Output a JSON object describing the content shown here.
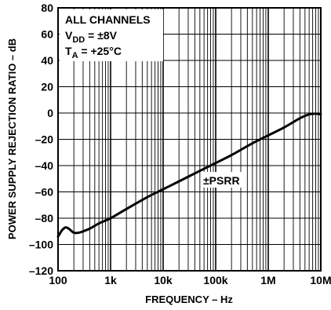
{
  "chart_data": {
    "type": "line",
    "title": "",
    "xlabel": "FREQUENCY – Hz",
    "ylabel": "POWER SUPPLY REJECTION RATIO – dB",
    "x_scale": "log",
    "xlim": [
      100,
      10000000
    ],
    "ylim": [
      -120,
      80
    ],
    "x_ticks": [
      100,
      1000,
      10000,
      100000,
      1000000,
      10000000
    ],
    "x_tick_labels": [
      "100",
      "1k",
      "10k",
      "100k",
      "1M",
      "10M"
    ],
    "y_ticks": [
      80,
      60,
      40,
      20,
      0,
      -20,
      -40,
      -60,
      -80,
      -100,
      -120
    ],
    "y_tick_labels": [
      "80",
      "60",
      "40",
      "20",
      "0",
      "–20",
      "–40",
      "–60",
      "–80",
      "–100",
      "–120"
    ],
    "grid": true,
    "legend": {
      "line1": "ALL CHANNELS",
      "line2_prefix": "V",
      "line2_sub": "DD",
      "line2_suffix": " = ±8V",
      "line3_prefix": "T",
      "line3_sub": "A",
      "line3_suffix": " = +25°C"
    },
    "series": [
      {
        "name": "±PSRR",
        "x": [
          100,
          120,
          140,
          160,
          200,
          250,
          300,
          400,
          600,
          1000,
          2000,
          5000,
          10000,
          20000,
          50000,
          100000,
          200000,
          500000,
          1000000,
          2000000,
          4000000,
          6000000,
          8000000,
          10000000
        ],
        "y": [
          -94,
          -89,
          -87,
          -88,
          -91,
          -91,
          -90,
          -88,
          -84,
          -80,
          -73,
          -64,
          -58,
          -52,
          -44,
          -38,
          -32,
          -23,
          -17,
          -11,
          -4,
          -1,
          -0.5,
          -1
        ]
      }
    ]
  }
}
